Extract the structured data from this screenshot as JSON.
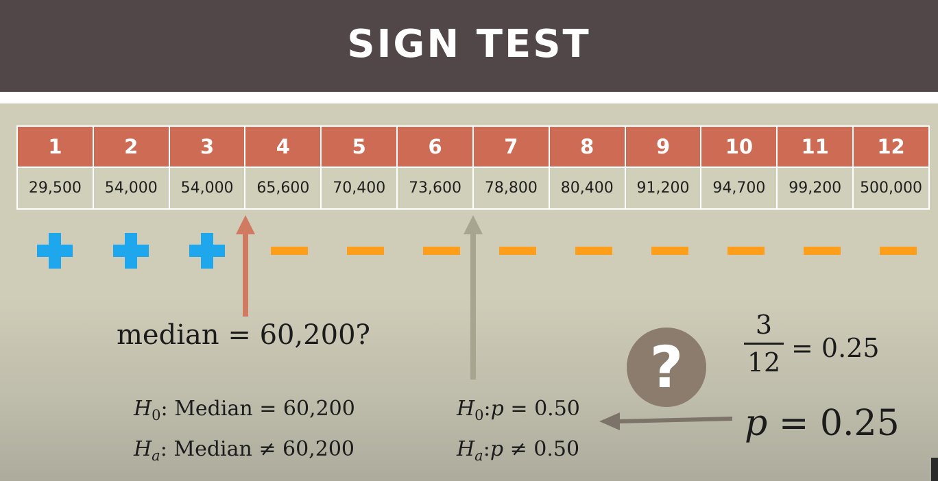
{
  "title": "SIGN TEST",
  "table": {
    "indices": [
      "1",
      "2",
      "3",
      "4",
      "5",
      "6",
      "7",
      "8",
      "9",
      "10",
      "11",
      "12"
    ],
    "values": [
      "29,500",
      "54,000",
      "54,000",
      "65,600",
      "70,400",
      "73,600",
      "78,800",
      "80,400",
      "91,200",
      "94,700",
      "99,200",
      "500,000"
    ]
  },
  "signs": [
    "plus",
    "plus",
    "plus",
    "minus",
    "minus",
    "minus",
    "minus",
    "minus",
    "minus",
    "minus",
    "minus",
    "minus"
  ],
  "median_question": {
    "lhs": "median",
    "op": "=",
    "rhs": "60,200?"
  },
  "hypotheses_median": {
    "h0_letter": "H",
    "h0_sub": "0",
    "h0_text": ": Median = 60,200",
    "ha_letter": "H",
    "ha_sub": "a",
    "ha_text": ": Median ≠ 60,200"
  },
  "hypotheses_p": {
    "h0_letter": "H",
    "h0_sub": "0",
    "h0_colon": ":",
    "h0_p": "p",
    "h0_rest": " = 0.50",
    "ha_letter": "H",
    "ha_sub": "a",
    "ha_colon": ":",
    "ha_p": "p",
    "ha_rest": " ≠ 0.50"
  },
  "question_mark": "?",
  "fraction": {
    "numerator": "3",
    "denominator": "12",
    "result": "= 0.25"
  },
  "p_estimate": {
    "p": "p",
    "rest": " = 0.25"
  },
  "colors": {
    "header": "#524748",
    "table_header": "#cd6b54",
    "plus": "#1ea7ec",
    "minus": "#ff9e1a",
    "arrow_median": "#d07a62",
    "arrow_p": "#a7a48f",
    "arrow_back": "#7c7468",
    "question_circle": "#8c7c6e"
  }
}
